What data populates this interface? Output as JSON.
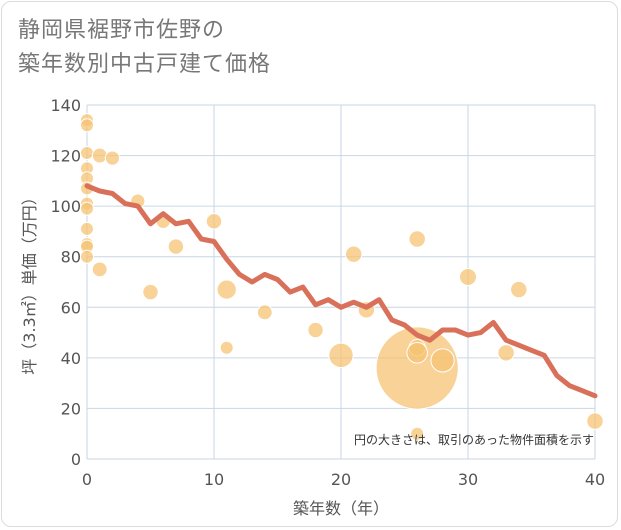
{
  "title_line1": "静岡県裾野市佐野の",
  "title_line2": "築年数別中古戸建て価格",
  "note": "円の大きさは、取引のあった物件面積を示す",
  "colors": {
    "line": "#d9705a",
    "bubble": "#f5c373",
    "grid": "#c9d6e3"
  },
  "chart_data": {
    "type": "scatter",
    "xlabel": "築年数（年）",
    "ylabel": "坪（3.3㎡）単価（万円）",
    "xlim": [
      0,
      40
    ],
    "ylim": [
      0,
      140
    ],
    "xticks": [
      "0",
      "10",
      "20",
      "30",
      "40"
    ],
    "yticks": [
      "0",
      "20",
      "40",
      "60",
      "80",
      "100",
      "120",
      "140"
    ],
    "grid": true,
    "points": [
      {
        "x": 0,
        "y": 134,
        "s": 1
      },
      {
        "x": 0,
        "y": 132,
        "s": 1
      },
      {
        "x": 0,
        "y": 121,
        "s": 1
      },
      {
        "x": 0,
        "y": 115,
        "s": 1
      },
      {
        "x": 0,
        "y": 111,
        "s": 1
      },
      {
        "x": 0,
        "y": 107,
        "s": 1
      },
      {
        "x": 0,
        "y": 101,
        "s": 1
      },
      {
        "x": 0,
        "y": 99,
        "s": 1
      },
      {
        "x": 0,
        "y": 91,
        "s": 1
      },
      {
        "x": 0,
        "y": 85,
        "s": 1
      },
      {
        "x": 0,
        "y": 84,
        "s": 1
      },
      {
        "x": 0,
        "y": 80,
        "s": 1
      },
      {
        "x": 1,
        "y": 120,
        "s": 1.3
      },
      {
        "x": 2,
        "y": 119,
        "s": 1.2
      },
      {
        "x": 1,
        "y": 75,
        "s": 1.3
      },
      {
        "x": 4,
        "y": 102,
        "s": 1.2
      },
      {
        "x": 5,
        "y": 66,
        "s": 1.4
      },
      {
        "x": 6,
        "y": 94,
        "s": 1.2
      },
      {
        "x": 7,
        "y": 84,
        "s": 1.4
      },
      {
        "x": 10,
        "y": 94,
        "s": 1.4
      },
      {
        "x": 11,
        "y": 67,
        "s": 2.2
      },
      {
        "x": 11,
        "y": 44,
        "s": 1
      },
      {
        "x": 14,
        "y": 58,
        "s": 1.3
      },
      {
        "x": 18,
        "y": 51,
        "s": 1.4
      },
      {
        "x": 20,
        "y": 41,
        "s": 3.5
      },
      {
        "x": 21,
        "y": 81,
        "s": 1.6
      },
      {
        "x": 22,
        "y": 59,
        "s": 1.6
      },
      {
        "x": 26,
        "y": 87,
        "s": 1.6
      },
      {
        "x": 26,
        "y": 36,
        "s": 40
      },
      {
        "x": 26,
        "y": 44,
        "s": 1.6
      },
      {
        "x": 26,
        "y": 42,
        "s": 2.5
      },
      {
        "x": 26,
        "y": 10,
        "s": 1
      },
      {
        "x": 28,
        "y": 39,
        "s": 3.2
      },
      {
        "x": 30,
        "y": 72,
        "s": 1.7
      },
      {
        "x": 33,
        "y": 42,
        "s": 1.6
      },
      {
        "x": 34,
        "y": 67,
        "s": 1.6
      },
      {
        "x": 40,
        "y": 15,
        "s": 1.6
      }
    ],
    "trend": {
      "x": [
        0,
        1,
        2,
        3,
        4,
        5,
        6,
        7,
        8,
        9,
        10,
        11,
        12,
        13,
        14,
        15,
        16,
        17,
        18,
        19,
        20,
        21,
        22,
        23,
        24,
        25,
        26,
        27,
        28,
        29,
        30,
        31,
        32,
        33,
        34,
        35,
        36,
        37,
        38,
        39,
        40
      ],
      "y": [
        108,
        106,
        105,
        101,
        100,
        93,
        97,
        93,
        94,
        87,
        86,
        79,
        73,
        70,
        73,
        71,
        66,
        68,
        61,
        63,
        60,
        62,
        60,
        63,
        55,
        53,
        49,
        47,
        51,
        51,
        49,
        50,
        54,
        47,
        45,
        43,
        41,
        33,
        29,
        27,
        25
      ]
    }
  }
}
